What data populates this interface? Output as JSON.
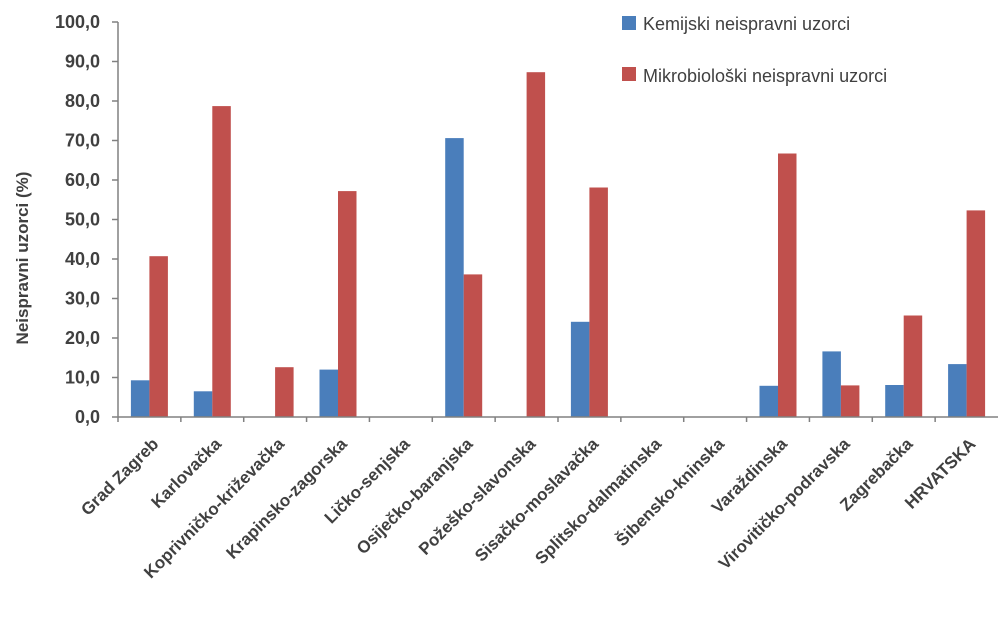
{
  "chart_data": {
    "type": "bar",
    "title": "",
    "xlabel": "",
    "ylabel": "Neispravni uzorci (%)",
    "ylim": [
      0,
      100
    ],
    "yticks": [
      "0,0",
      "10,0",
      "20,0",
      "30,0",
      "40,0",
      "50,0",
      "60,0",
      "70,0",
      "80,0",
      "90,0",
      "100,0"
    ],
    "grid": false,
    "legend_position": "top-right",
    "categories": [
      "Grad Zagreb",
      "Karlovačka",
      "Koprivničko-križevačka",
      "Krapinsko-zagorska",
      "Ličko-senjska",
      "Osiječko-baranjska",
      "Požeško-slavonska",
      "Sisačko-moslavačka",
      "Splitsko-dalmatinska",
      "Šibensko-kninska",
      "Varaždinska",
      "Virovitičko-podravska",
      "Zagrebačka",
      "HRVATSKA"
    ],
    "series": [
      {
        "name": "Kemijski neispravni uzorci",
        "color": "#4a7ebb",
        "values": [
          9.3,
          6.5,
          0,
          12.0,
          0,
          70.6,
          0,
          24.1,
          0,
          0,
          7.9,
          16.6,
          8.1,
          13.4
        ]
      },
      {
        "name": "Mikrobiološki neispravni uzorci",
        "color": "#c0504d",
        "values": [
          40.7,
          78.7,
          12.6,
          57.2,
          0,
          36.1,
          87.3,
          58.1,
          0,
          0,
          66.7,
          8.0,
          25.7,
          52.3
        ]
      }
    ]
  }
}
